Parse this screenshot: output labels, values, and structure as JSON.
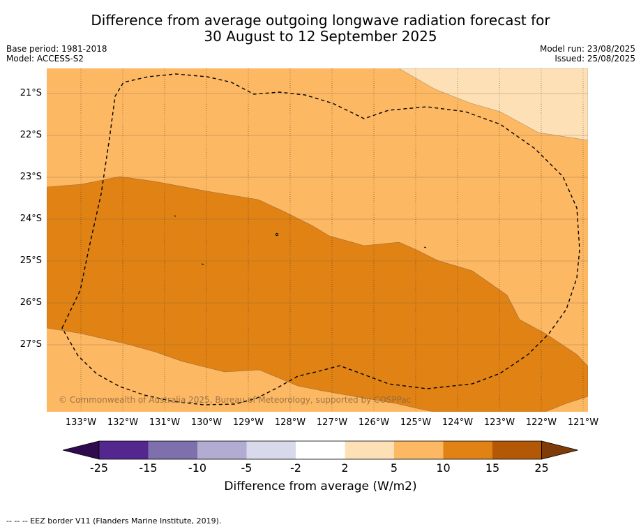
{
  "title_line1": "Difference from average outgoing longwave radiation forecast for",
  "title_line2": "30 August to 12 September 2025",
  "base_period": "Base period: 1981-2018",
  "model": "Model: ACCESS-S2",
  "model_run": "Model run: 23/08/2025",
  "issued": "Issued: 25/08/2025",
  "copyright": "© Commonwealth of Australia 2025, Bureau of Meteorology, supported by COSPPac",
  "lat_labels": [
    "21°S",
    "22°S",
    "23°S",
    "24°S",
    "25°S",
    "26°S",
    "27°S"
  ],
  "lon_labels": [
    "133°W",
    "132°W",
    "131°W",
    "130°W",
    "129°W",
    "128°W",
    "127°W",
    "126°W",
    "125°W",
    "124°W",
    "123°W",
    "122°W",
    "121°W"
  ],
  "colorbar": {
    "ticks": [
      "-25",
      "-15",
      "-10",
      "-5",
      "-2",
      "2",
      "5",
      "10",
      "15",
      "25"
    ],
    "colors": [
      "#2f0a4f",
      "#54278f",
      "#7d70ad",
      "#b2abd2",
      "#d8daeb",
      "#ffffff",
      "#fee0b6",
      "#fdb863",
      "#e08214",
      "#b35806",
      "#7f3b08"
    ],
    "label": "Difference from average (W/m2)"
  },
  "legend_footer": "--  --  -- EEZ border V11 (Flanders Marine Institute, 2019)."
}
